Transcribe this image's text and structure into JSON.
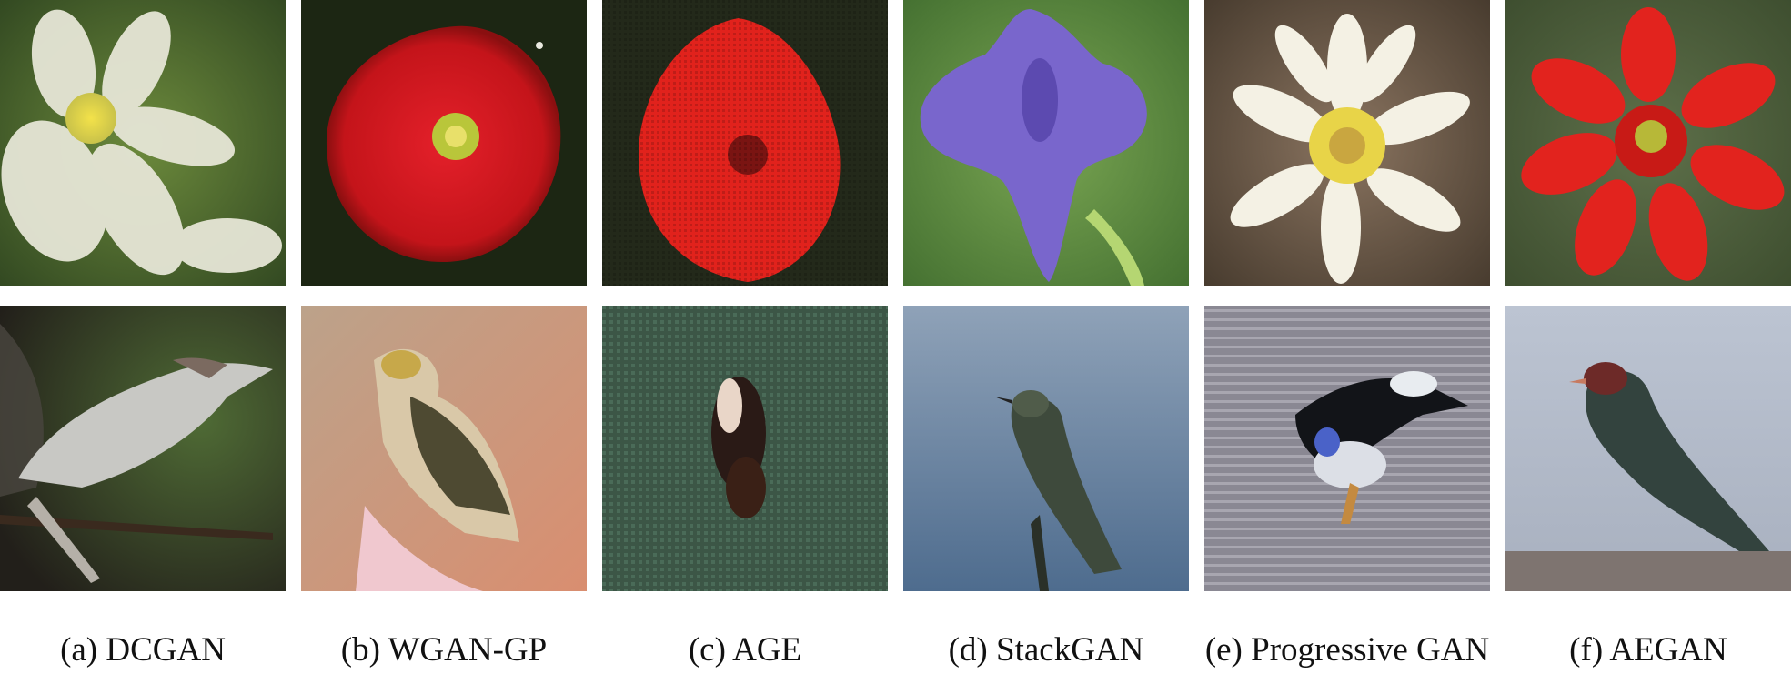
{
  "columns": [
    {
      "caption": "(a) DCGAN"
    },
    {
      "caption": "(b) WGAN-GP"
    },
    {
      "caption": "(c) AGE"
    },
    {
      "caption": "(d) StackGAN"
    },
    {
      "caption": "(e) Progressive GAN"
    },
    {
      "caption": "(f) AEGAN"
    }
  ],
  "rows": [
    "flower",
    "bird"
  ],
  "colors": {
    "dcgan_flower_bg": "#4d6e2c",
    "dcgan_flower": "#e8e7d8",
    "dcgan_flower_center": "#e6d84a",
    "wgan_flower_bg": "#1f2a14",
    "wgan_flower": "#d71a1e",
    "age_flower_bg": "#25291a",
    "age_flower": "#e3221c",
    "stack_flower_bg": "#5c8c45",
    "stack_flower": "#7a68cc",
    "prog_flower_bg": "#6f5a4a",
    "prog_flower": "#f2efe0",
    "prog_flower_center": "#e8d648",
    "aegan_flower_bg": "#4d5f3b",
    "aegan_flower": "#e3241f",
    "dcgan_bird_bg": "#3d5030",
    "wgan_bird_bg": "#c99778",
    "age_bird_bg": "#3f5b4c",
    "stack_bird_bg": "#7f96b0",
    "prog_bird_bg": "#8b8994",
    "aegan_bird_bg": "#b4bccc"
  }
}
